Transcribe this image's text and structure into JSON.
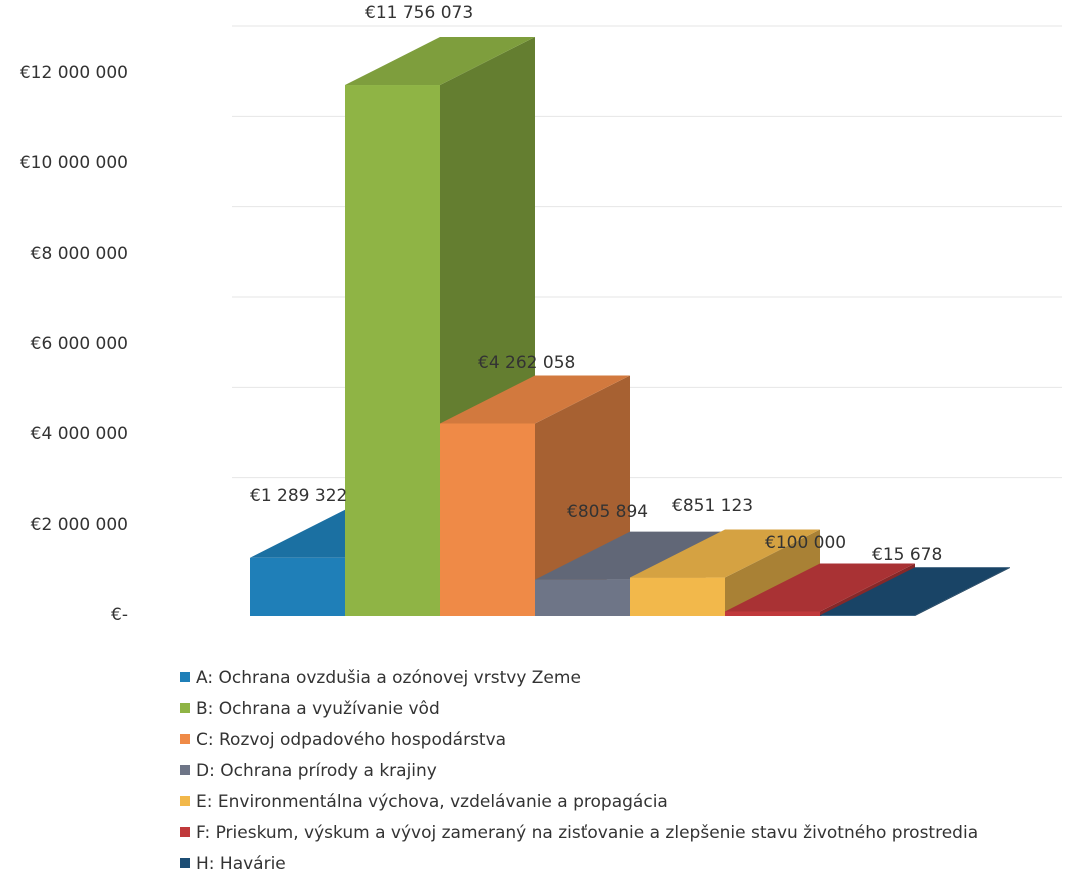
{
  "chart_data": {
    "type": "bar",
    "categories": [
      "A",
      "B",
      "C",
      "D",
      "E",
      "F",
      "H"
    ],
    "series": [
      {
        "values": [
          1289322,
          11756073,
          4262058,
          805894,
          851123,
          100000,
          15678
        ]
      }
    ],
    "data_labels": [
      "€1 289 322",
      "€11 756 073",
      "€4 262 058",
      "€805 894",
      "€851 123",
      "€100 000",
      "€15 678"
    ],
    "y_tick_labels": [
      "€-",
      "€2 000 000",
      "€4 000 000",
      "€6 000 000",
      "€8 000 000",
      "€10 000 000",
      "€12 000 000"
    ],
    "y_ticks": [
      0,
      2000000,
      4000000,
      6000000,
      8000000,
      10000000,
      12000000
    ],
    "ylim": [
      0,
      12000000
    ],
    "style": "3d-column",
    "grid": true,
    "legend_position": "bottom",
    "legend": [
      {
        "label": "A: Ochrana ovzdušia a ozónovej vrstvy Zeme",
        "color": "#1f7fb8"
      },
      {
        "label": "B: Ochrana a využívanie vôd",
        "color": "#8fb445"
      },
      {
        "label": "C: Rozvoj odpadového hospodárstva",
        "color": "#ef8a47"
      },
      {
        "label": "D: Ochrana prírody a krajiny",
        "color": "#6e7587"
      },
      {
        "label": "E: Environmentálna výchova, vzdelávanie a propagácia",
        "color": "#f2b84b"
      },
      {
        "label": "F: Prieskum, výskum a vývoj zameraný na zisťovanie a zlepšenie stavu životného prostredia",
        "color": "#c0393b"
      },
      {
        "label": "H: Havárie",
        "color": "#1c4d74"
      }
    ]
  }
}
